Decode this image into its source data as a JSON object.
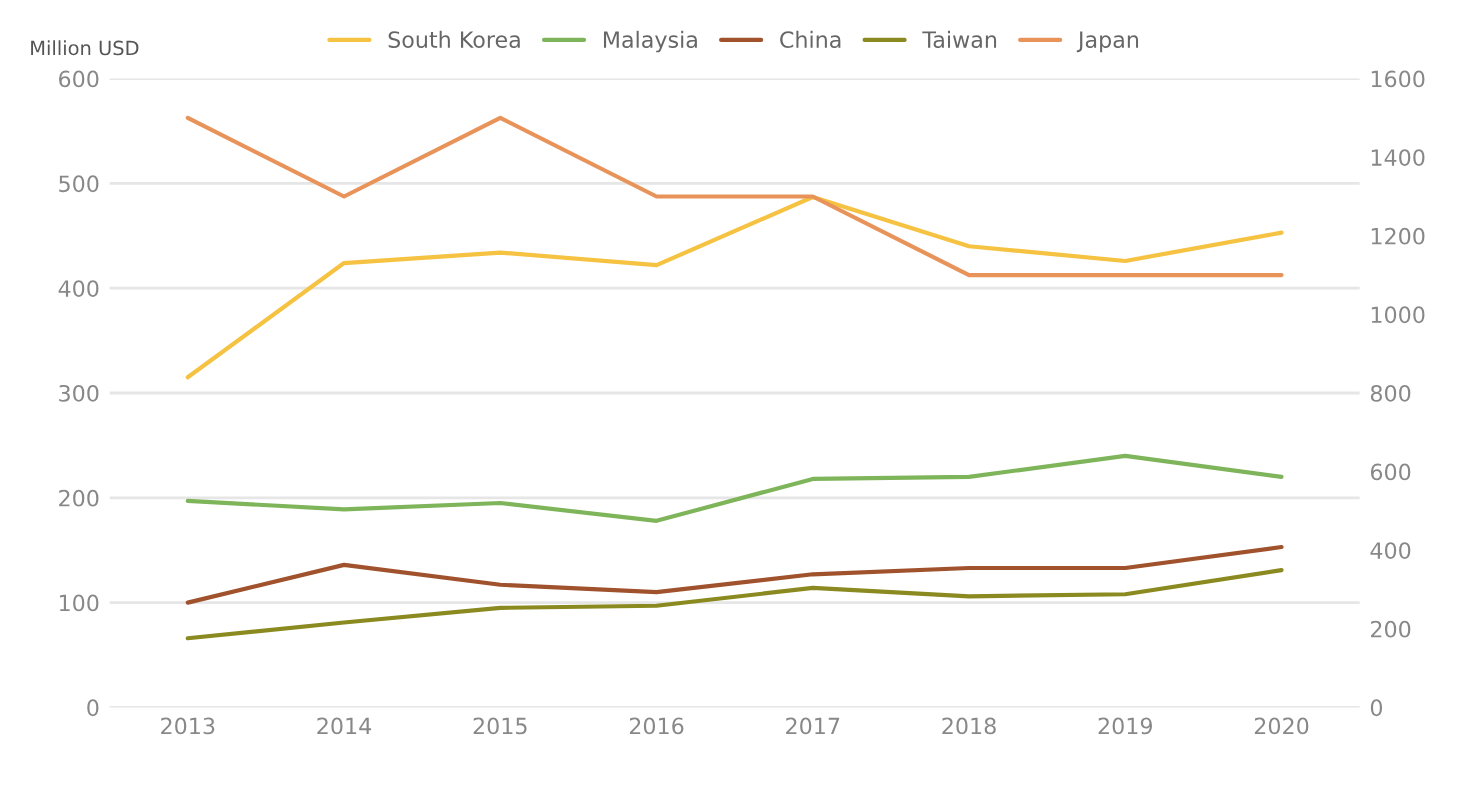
{
  "chart_data": {
    "type": "line",
    "ylabel": "Million USD",
    "categories": [
      "2013",
      "2014",
      "2015",
      "2016",
      "2017",
      "2018",
      "2019",
      "2020"
    ],
    "series": [
      {
        "name": "South Korea",
        "color": "#f5c242",
        "values": [
          315,
          424,
          434,
          422,
          487,
          440,
          426,
          453
        ]
      },
      {
        "name": "Malaysia",
        "color": "#7fb55a",
        "values": [
          197,
          189,
          195,
          178,
          218,
          220,
          240,
          220
        ]
      },
      {
        "name": "China",
        "color": "#a0522d",
        "values": [
          100,
          136,
          117,
          110,
          127,
          133,
          133,
          153
        ]
      },
      {
        "name": "Taiwan",
        "color": "#8a8a20",
        "values": [
          66,
          81,
          95,
          97,
          114,
          106,
          108,
          131
        ]
      },
      {
        "name": "Japan",
        "color": "#e8935a",
        "axis": "y2",
        "values": [
          1500,
          1300,
          1500,
          1300,
          1300,
          1100,
          1100,
          1100
        ]
      }
    ],
    "ylim": [
      0,
      600
    ],
    "yticks": [
      0,
      100,
      200,
      300,
      400,
      500,
      600
    ],
    "y2lim": [
      0,
      1600
    ],
    "y2ticks": [
      0,
      200,
      400,
      600,
      800,
      1000,
      1200,
      1400,
      1600
    ],
    "grid": "y",
    "legend": "top",
    "marker": "none",
    "line_style": "solid"
  }
}
